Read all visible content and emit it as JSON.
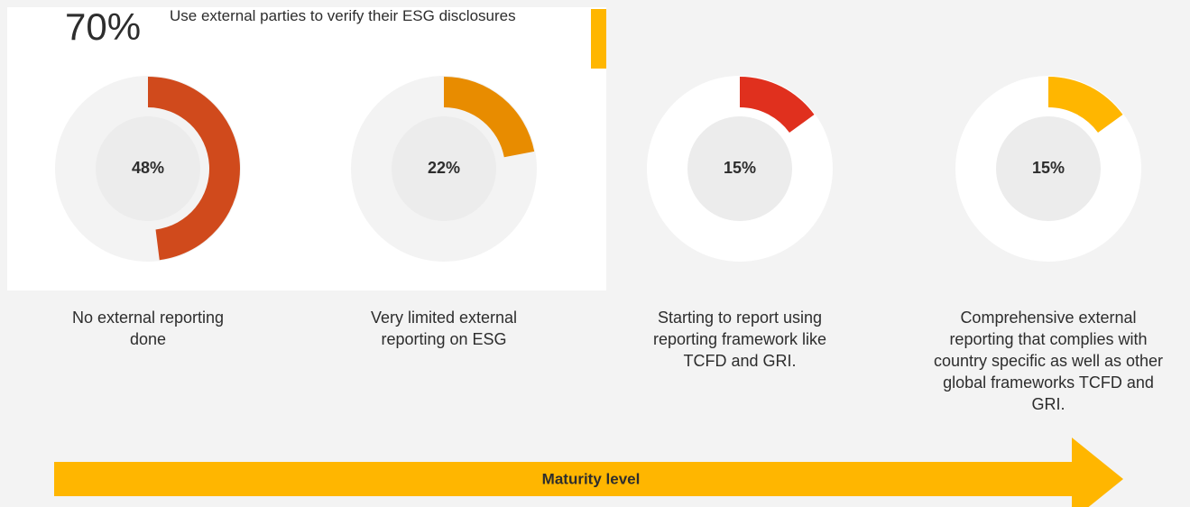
{
  "header": {
    "stat": "70%",
    "text": "Use external parties to verify their ESG disclosures"
  },
  "chart_data": [
    {
      "type": "donut",
      "values": [
        48
      ],
      "value_labels": [
        "48%"
      ],
      "caption": "No external reporting done",
      "color": "#d04a1c"
    },
    {
      "type": "donut",
      "values": [
        22
      ],
      "value_labels": [
        "22%"
      ],
      "caption": "Very limited external reporting on ESG",
      "color": "#e88c00"
    },
    {
      "type": "donut",
      "values": [
        15
      ],
      "value_labels": [
        "15%"
      ],
      "caption": "Starting to report using reporting framework like TCFD and GRI.",
      "color": "#e0301e"
    },
    {
      "type": "donut",
      "values": [
        15
      ],
      "value_labels": [
        "15%"
      ],
      "caption": "Comprehensive external reporting that complies with country specific as well as other global frameworks TCFD and GRI.",
      "color": "#ffb600"
    }
  ],
  "arrow_label": "Maturity level"
}
